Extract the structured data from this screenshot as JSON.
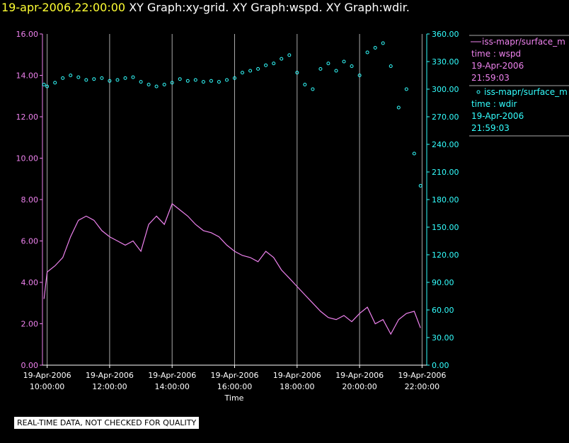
{
  "header": {
    "timestamp": "19-apr-2006,22:00:00",
    "graphs": [
      "XY Graph:xy-grid.",
      "XY Graph:wspd.",
      "XY Graph:wdir."
    ]
  },
  "footer": {
    "quality_notice": "REAL-TIME DATA, NOT CHECKED FOR QUALITY"
  },
  "colors": {
    "wspd": "#ee82ee",
    "wdir": "#33ffff",
    "title": "#ffff33",
    "grid": "#aaaaaa",
    "text": "#ffffff"
  },
  "chart_data": {
    "type": "line",
    "title": "XY Graph",
    "xlabel": "Time",
    "x_range_hours": [
      9.85,
      22.15
    ],
    "x_ticks": [
      {
        "hour": 10,
        "date": "19-Apr-2006",
        "time": "10:00:00"
      },
      {
        "hour": 12,
        "date": "19-Apr-2006",
        "time": "12:00:00"
      },
      {
        "hour": 14,
        "date": "19-Apr-2006",
        "time": "14:00:00"
      },
      {
        "hour": 16,
        "date": "19-Apr-2006",
        "time": "16:00:00"
      },
      {
        "hour": 18,
        "date": "19-Apr-2006",
        "time": "18:00:00"
      },
      {
        "hour": 20,
        "date": "19-Apr-2006",
        "time": "20:00:00"
      },
      {
        "hour": 22,
        "date": "19-Apr-2006",
        "time": "22:00:00"
      }
    ],
    "y_left": {
      "label": "wspd",
      "range": [
        0,
        16
      ],
      "ticks": [
        "0.00",
        "2.00",
        "4.00",
        "6.00",
        "8.00",
        "10.00",
        "12.00",
        "14.00",
        "16.00"
      ]
    },
    "y_right": {
      "label": "wdir",
      "range": [
        0,
        360
      ],
      "ticks": [
        "0.00",
        "30.00",
        "60.00",
        "90.00",
        "120.00",
        "150.00",
        "180.00",
        "210.00",
        "240.00",
        "270.00",
        "300.00",
        "330.00",
        "360.00"
      ]
    },
    "series": [
      {
        "name": "wspd",
        "legend_source": "iss-mapr/surface_m",
        "legend_var": "time : wspd",
        "legend_date": "19-Apr-2006",
        "legend_time": "21:59:03",
        "style": "line",
        "axis": "left",
        "x": [
          9.9,
          10.0,
          10.25,
          10.5,
          10.75,
          11.0,
          11.25,
          11.5,
          11.75,
          12.0,
          12.25,
          12.5,
          12.75,
          13.0,
          13.25,
          13.5,
          13.75,
          14.0,
          14.25,
          14.5,
          14.75,
          15.0,
          15.25,
          15.5,
          15.75,
          16.0,
          16.25,
          16.5,
          16.75,
          17.0,
          17.25,
          17.5,
          17.75,
          18.0,
          18.25,
          18.5,
          18.75,
          19.0,
          19.25,
          19.5,
          19.75,
          20.0,
          20.25,
          20.5,
          20.75,
          21.0,
          21.25,
          21.5,
          21.75,
          21.95
        ],
        "y": [
          3.2,
          4.5,
          4.8,
          5.2,
          6.2,
          7.0,
          7.2,
          7.0,
          6.5,
          6.2,
          6.0,
          5.8,
          6.0,
          5.5,
          6.8,
          7.2,
          6.8,
          7.8,
          7.5,
          7.2,
          6.8,
          6.5,
          6.4,
          6.2,
          5.8,
          5.5,
          5.3,
          5.2,
          5.0,
          5.5,
          5.2,
          4.6,
          4.2,
          3.8,
          3.4,
          3.0,
          2.6,
          2.3,
          2.2,
          2.4,
          2.1,
          2.5,
          2.8,
          2.0,
          2.2,
          1.5,
          2.2,
          2.5,
          2.6,
          1.8
        ]
      },
      {
        "name": "wdir",
        "legend_source": "iss-mapr/surface_m",
        "legend_var": "time : wdir",
        "legend_date": "19-Apr-2006",
        "legend_time": "21:59:03",
        "style": "markers",
        "axis": "right",
        "x": [
          9.9,
          10.0,
          10.25,
          10.5,
          10.75,
          11.0,
          11.25,
          11.5,
          11.75,
          12.0,
          12.25,
          12.5,
          12.75,
          13.0,
          13.25,
          13.5,
          13.75,
          14.0,
          14.25,
          14.5,
          14.75,
          15.0,
          15.25,
          15.5,
          15.75,
          16.0,
          16.25,
          16.5,
          16.75,
          17.0,
          17.25,
          17.5,
          17.75,
          18.0,
          18.25,
          18.5,
          18.75,
          19.0,
          19.25,
          19.5,
          19.75,
          20.0,
          20.25,
          20.5,
          20.75,
          21.0,
          21.25,
          21.5,
          21.75,
          21.95
        ],
        "y": [
          305,
          303,
          307,
          312,
          315,
          313,
          310,
          311,
          312,
          309,
          310,
          312,
          313,
          308,
          305,
          303,
          305,
          307,
          311,
          309,
          310,
          308,
          309,
          308,
          310,
          312,
          318,
          320,
          322,
          326,
          328,
          333,
          337,
          318,
          305,
          300,
          322,
          328,
          320,
          330,
          325,
          315,
          340,
          345,
          350,
          325,
          280,
          300,
          230,
          195
        ]
      }
    ],
    "grid": true
  }
}
